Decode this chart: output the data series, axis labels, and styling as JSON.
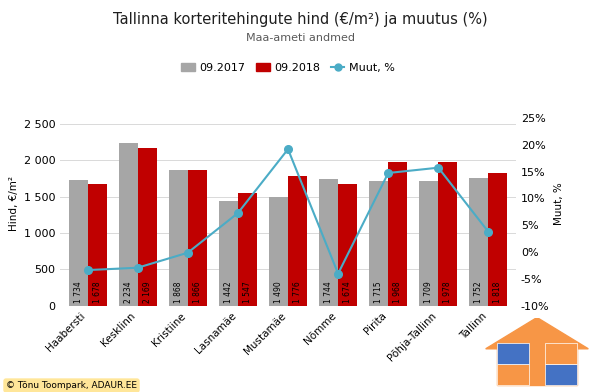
{
  "title": "Tallinna korteritehingute hind (€/m²) ja muutus (%)",
  "subtitle": "Maa-ameti andmed",
  "ylabel_left": "Hind, €/m²",
  "ylabel_right": "Muut, %",
  "categories": [
    "Haabersti",
    "Kesklinn",
    "Kristiine",
    "Lasnamäe",
    "Mustamäe",
    "Nõmme",
    "Pirita",
    "Põhja-Tallinn",
    "Tallinn"
  ],
  "values_2017": [
    1734,
    2234,
    1868,
    1442,
    1490,
    1744,
    1715,
    1709,
    1752
  ],
  "values_2018": [
    1678,
    2169,
    1866,
    1547,
    1776,
    1674,
    1968,
    1978,
    1818
  ],
  "muutus": [
    -3.35,
    -2.91,
    -0.11,
    7.28,
    19.19,
    -4.01,
    14.75,
    15.74,
    3.77
  ],
  "color_2017": "#a6a6a6",
  "color_2018": "#c00000",
  "color_line": "#4bacc6",
  "bar_width": 0.38,
  "ylim_left": [
    0,
    2800
  ],
  "ylim_right": [
    -0.1,
    0.28
  ],
  "yticks_left": [
    0,
    500,
    1000,
    1500,
    2000,
    2500
  ],
  "yticks_right": [
    -0.1,
    -0.05,
    0.0,
    0.05,
    0.1,
    0.15,
    0.2,
    0.25
  ],
  "ytick_labels_right": [
    "-10%",
    "-5%",
    "0%",
    "5%",
    "10%",
    "15%",
    "20%",
    "25%"
  ],
  "legend_labels": [
    "09.2017",
    "09.2018",
    "Muut, %"
  ],
  "background_color": "#ffffff",
  "grid_color": "#d9d9d9",
  "logo_orange": "#f79646",
  "logo_blue": "#4472c4",
  "logo_darkblue": "#17375e"
}
